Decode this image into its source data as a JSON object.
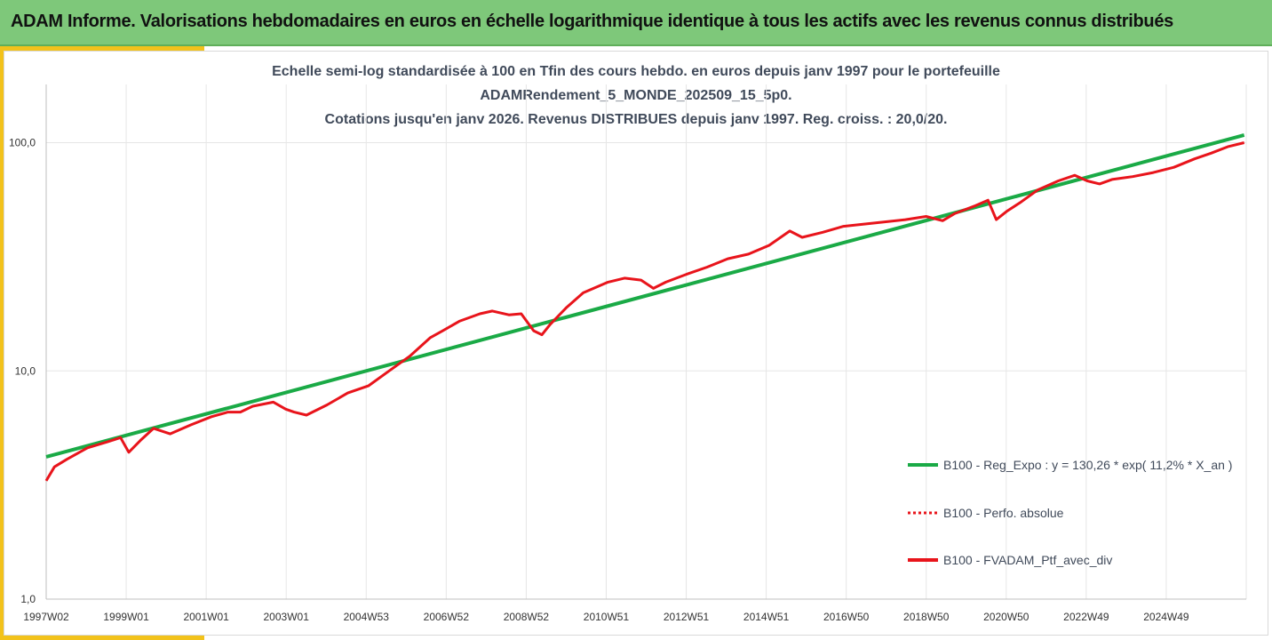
{
  "header": {
    "title": "ADAM Informe. Valorisations hebdomadaires en euros en échelle logarithmique identique à tous les actifs avec les revenus connus distribués"
  },
  "colors": {
    "banner": "#7ec87a",
    "accent": "#f2c21b",
    "regression": "#1aaa46",
    "portfolio": "#e8141b",
    "grid": "#e6e6e6"
  },
  "chart_data": {
    "type": "line",
    "title_lines": [
      "Echelle semi-log standardisée à 100 en Tfin des cours hebdo.  en euros depuis janv 1997 pour le portefeuille",
      "ADAMRendement_5_MONDE_202509_15_5p0.",
      "Cotations  jusqu'en janv 2026. Revenus DISTRIBUES depuis janv 1997. Reg. croiss. : 20,0/20."
    ],
    "y_scale": "log",
    "ylim": [
      1,
      180
    ],
    "y_ticks": [
      "1,0",
      "10,0",
      "100,0"
    ],
    "x_tick_labels": [
      "1997W02",
      "1999W01",
      "2001W01",
      "2003W01",
      "2004W53",
      "2006W52",
      "2008W52",
      "2010W51",
      "2012W51",
      "2014W51",
      "2016W50",
      "2018W50",
      "2020W50",
      "2022W49",
      "2024W49"
    ],
    "x_range_years": [
      1997.0,
      2026.05
    ],
    "grid": true,
    "legend_position": "right",
    "series": [
      {
        "name": "B100 - Reg_Expo : y = 130,26 * exp( 11,2% *  X_an )",
        "style": "solid",
        "color": "#1aaa46",
        "x": [
          1997.0,
          2026.0
        ],
        "y": [
          4.2,
          108
        ]
      },
      {
        "name": "B100 - Perfo. absolue",
        "style": "dotted",
        "color": "#e8141b",
        "x": [],
        "y": []
      },
      {
        "name": "B100 - FVADAM_Ptf_avec_div",
        "style": "solid",
        "color": "#e8141b",
        "x": [
          1997.0,
          1997.2,
          1997.5,
          1998.0,
          1998.5,
          1998.8,
          1999.0,
          1999.3,
          1999.6,
          2000.0,
          2000.5,
          2001.0,
          2001.4,
          2001.7,
          2002.0,
          2002.5,
          2002.8,
          2003.0,
          2003.3,
          2003.8,
          2004.3,
          2004.8,
          2005.3,
          2005.8,
          2006.3,
          2006.6,
          2007.0,
          2007.5,
          2007.8,
          2008.2,
          2008.5,
          2008.8,
          2009.0,
          2009.2,
          2009.6,
          2010.0,
          2010.6,
          2011.0,
          2011.4,
          2011.7,
          2012.0,
          2012.5,
          2013.0,
          2013.5,
          2014.0,
          2014.5,
          2015.0,
          2015.3,
          2015.8,
          2016.3,
          2016.8,
          2017.3,
          2017.8,
          2018.3,
          2018.7,
          2019.0,
          2019.5,
          2019.8,
          2020.0,
          2020.25,
          2020.6,
          2021.0,
          2021.5,
          2021.9,
          2022.2,
          2022.5,
          2022.8,
          2023.3,
          2023.8,
          2024.3,
          2024.8,
          2025.2,
          2025.6,
          2026.0
        ],
        "y": [
          3.3,
          3.8,
          4.1,
          4.6,
          4.9,
          5.1,
          4.4,
          5.0,
          5.6,
          5.3,
          5.8,
          6.3,
          6.6,
          6.6,
          7.0,
          7.3,
          6.8,
          6.6,
          6.4,
          7.1,
          8.0,
          8.6,
          10.0,
          11.6,
          14.0,
          15.0,
          16.5,
          17.8,
          18.3,
          17.6,
          17.8,
          15.0,
          14.4,
          16.0,
          19.0,
          22.0,
          24.5,
          25.5,
          25.0,
          23.0,
          24.5,
          26.5,
          28.5,
          31.0,
          32.5,
          35.5,
          41.0,
          38.5,
          40.5,
          43.0,
          44.0,
          45.0,
          46.0,
          47.5,
          45.5,
          49.0,
          53.0,
          56.0,
          46.0,
          50.0,
          55.0,
          62.0,
          68.0,
          72.0,
          68.0,
          66.0,
          69.0,
          71.0,
          74.0,
          78.0,
          85.0,
          90.0,
          96.0,
          100.0
        ]
      }
    ]
  }
}
